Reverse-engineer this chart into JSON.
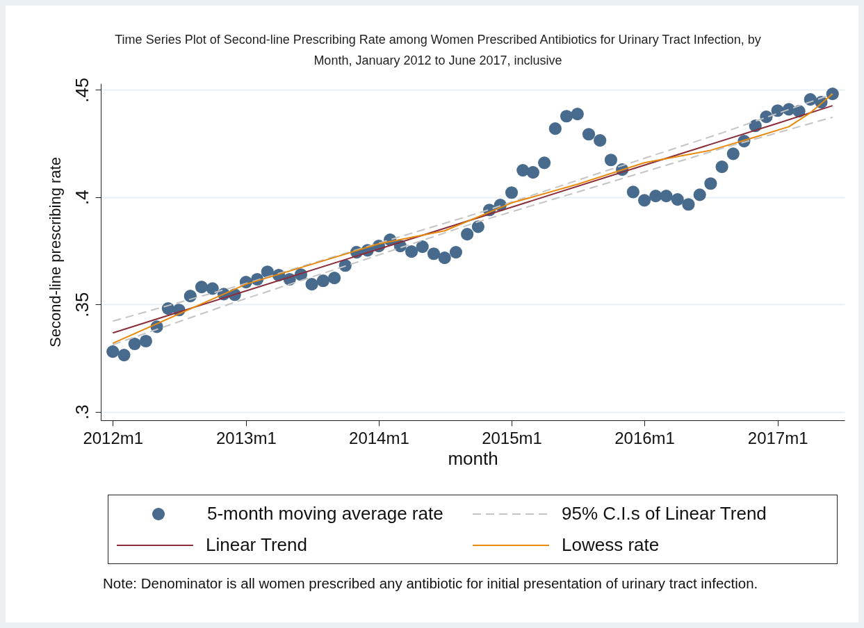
{
  "chart_data": {
    "type": "line",
    "title": "Time Series Plot of Second-line Prescribing Rate among Women Prescribed Antibiotics for Urinary Tract Infection, by Month, January 2012 to June 2017, inclusive",
    "xlabel": "month",
    "ylabel": "Second-line prescribing rate",
    "annotations": [
      "Note: Denominator is all women prescribed any antibiotic for initial presentation of urinary tract infection."
    ],
    "x": [
      "2012-01",
      "2012-02",
      "2012-03",
      "2012-04",
      "2012-05",
      "2012-06",
      "2012-07",
      "2012-08",
      "2012-09",
      "2012-10",
      "2012-11",
      "2012-12",
      "2013-01",
      "2013-02",
      "2013-03",
      "2013-04",
      "2013-05",
      "2013-06",
      "2013-07",
      "2013-08",
      "2013-09",
      "2013-10",
      "2013-11",
      "2013-12",
      "2014-01",
      "2014-02",
      "2014-03",
      "2014-04",
      "2014-05",
      "2014-06",
      "2014-07",
      "2014-08",
      "2014-09",
      "2014-10",
      "2014-11",
      "2014-12",
      "2015-01",
      "2015-02",
      "2015-03",
      "2015-04",
      "2015-05",
      "2015-06",
      "2015-07",
      "2015-08",
      "2015-09",
      "2015-10",
      "2015-11",
      "2015-12",
      "2016-01",
      "2016-02",
      "2016-03",
      "2016-04",
      "2016-05",
      "2016-06",
      "2016-07",
      "2016-08",
      "2016-09",
      "2016-10",
      "2016-11",
      "2016-12",
      "2017-01",
      "2017-02",
      "2017-03",
      "2017-04",
      "2017-05",
      "2017-06"
    ],
    "xlim": [
      "2011-11-29",
      "2017-07-04"
    ],
    "xticks": [
      {
        "value": "2012-01",
        "label": "2012m1"
      },
      {
        "value": "2013-01",
        "label": "2013m1"
      },
      {
        "value": "2014-01",
        "label": "2014m1"
      },
      {
        "value": "2015-01",
        "label": "2015m1"
      },
      {
        "value": "2016-01",
        "label": "2016m1"
      },
      {
        "value": "2017-01",
        "label": "2017m1"
      }
    ],
    "ylim": [
      0.296,
      0.453
    ],
    "yticks": [
      {
        "value": 0.3,
        "label": ".3"
      },
      {
        "value": 0.35,
        "label": ".35"
      },
      {
        "value": 0.4,
        "label": ".4"
      },
      {
        "value": 0.45,
        "label": ".45"
      }
    ],
    "grid": "y",
    "legend": "bottom",
    "series": [
      {
        "name": "5-month moving average rate",
        "type": "scatter",
        "marker": "circle",
        "color": "#476a8d",
        "values": [
          0.328,
          0.3264,
          0.3316,
          0.3329,
          0.3396,
          0.3481,
          0.3474,
          0.3539,
          0.3581,
          0.3574,
          0.3548,
          0.3545,
          0.3604,
          0.3617,
          0.3652,
          0.3636,
          0.3617,
          0.3639,
          0.3594,
          0.361,
          0.3623,
          0.3681,
          0.3743,
          0.3752,
          0.3772,
          0.3801,
          0.3772,
          0.3746,
          0.3769,
          0.3736,
          0.3717,
          0.3743,
          0.3827,
          0.3862,
          0.394,
          0.3963,
          0.4021,
          0.4125,
          0.4115,
          0.416,
          0.4319,
          0.4377,
          0.4387,
          0.4293,
          0.4264,
          0.4173,
          0.4128,
          0.4024,
          0.3985,
          0.4005,
          0.4005,
          0.3989,
          0.3966,
          0.4011,
          0.4063,
          0.4141,
          0.4202,
          0.4261,
          0.4332,
          0.4374,
          0.4403,
          0.4409,
          0.44,
          0.4455,
          0.4442,
          0.4481
        ]
      },
      {
        "name": "95% C.I.s of Linear Trend",
        "line_style": "dashed",
        "color": "#c4c4c4",
        "x": [
          "2012-01",
          "2012-12",
          "2013-11",
          "2014-10",
          "2015-09",
          "2016-08",
          "2017-06"
        ],
        "values": [
          0.3422,
          0.3582,
          0.3754,
          0.3925,
          0.4113,
          0.4299,
          0.448
        ]
      },
      {
        "line_style": "dashed",
        "color": "#c4c4c4",
        "x": [
          "2012-01",
          "2012-12",
          "2013-11",
          "2014-10",
          "2015-09",
          "2016-08",
          "2017-06"
        ],
        "values": [
          0.3312,
          0.351,
          0.3696,
          0.3885,
          0.4055,
          0.4227,
          0.4372
        ]
      },
      {
        "name": "Linear Trend",
        "line_style": "solid",
        "color": "#8b2d3a",
        "x": [
          "2012-01",
          "2013-01",
          "2014-01",
          "2015-01",
          "2016-01",
          "2017-01",
          "2017-06"
        ],
        "values": [
          0.3367,
          0.3563,
          0.3758,
          0.3953,
          0.4149,
          0.4344,
          0.4426
        ]
      },
      {
        "name": "Lowess rate",
        "line_style": "solid",
        "color": "#e8890c",
        "x": [
          "2012-01",
          "2013-01",
          "2014-01",
          "2014-07",
          "2015-01",
          "2015-07",
          "2016-01",
          "2016-07",
          "2016-11",
          "2017-02",
          "2017-04",
          "2017-06"
        ],
        "values": [
          0.3319,
          0.3594,
          0.3782,
          0.3843,
          0.3973,
          0.406,
          0.416,
          0.4218,
          0.428,
          0.4328,
          0.4393,
          0.4481
        ]
      }
    ]
  }
}
